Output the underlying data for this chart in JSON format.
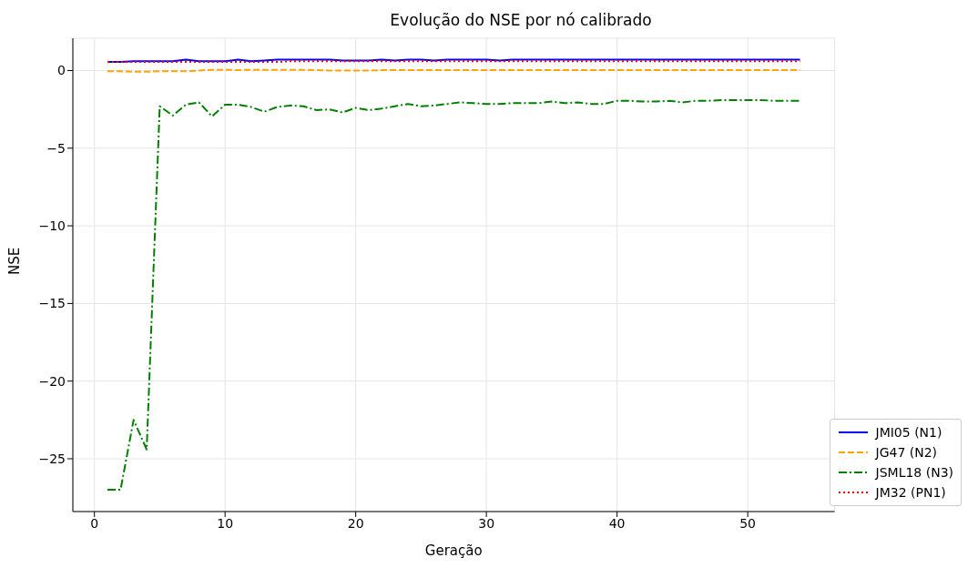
{
  "chart_data": {
    "type": "line",
    "title": "Evolução do NSE por nó calibrado",
    "xlabel": "Geração",
    "ylabel": "NSE",
    "x": [
      1,
      2,
      3,
      4,
      5,
      6,
      7,
      8,
      9,
      10,
      11,
      12,
      13,
      14,
      15,
      16,
      17,
      18,
      19,
      20,
      21,
      22,
      23,
      24,
      25,
      26,
      27,
      28,
      29,
      30,
      31,
      32,
      33,
      34,
      35,
      36,
      37,
      38,
      39,
      40,
      41,
      42,
      43,
      44,
      45,
      46,
      47,
      48,
      49,
      50,
      51,
      52,
      53,
      54
    ],
    "series": [
      {
        "name": "JMI05 (N1)",
        "color": "#0000ff",
        "line_style": "solid",
        "values": [
          0.55,
          0.55,
          0.6,
          0.6,
          0.6,
          0.6,
          0.7,
          0.6,
          0.6,
          0.6,
          0.7,
          0.6,
          0.65,
          0.7,
          0.7,
          0.7,
          0.7,
          0.7,
          0.65,
          0.65,
          0.65,
          0.7,
          0.65,
          0.7,
          0.7,
          0.65,
          0.7,
          0.7,
          0.7,
          0.7,
          0.65,
          0.7,
          0.7,
          0.7,
          0.7,
          0.7,
          0.7,
          0.7,
          0.7,
          0.7,
          0.7,
          0.7,
          0.7,
          0.7,
          0.7,
          0.7,
          0.7,
          0.7,
          0.7,
          0.7,
          0.7,
          0.7,
          0.7,
          0.7
        ]
      },
      {
        "name": "JG47 (N2)",
        "color": "#ffa500",
        "line_style": "dashed",
        "values": [
          -0.05,
          -0.05,
          -0.08,
          -0.08,
          -0.05,
          -0.05,
          -0.05,
          0.0,
          0.05,
          0.05,
          0.03,
          0.05,
          0.05,
          0.05,
          0.05,
          0.05,
          0.03,
          0.0,
          0.0,
          0.0,
          0.0,
          0.03,
          0.03,
          0.03,
          0.03,
          0.03,
          0.03,
          0.03,
          0.03,
          0.03,
          0.03,
          0.03,
          0.03,
          0.03,
          0.03,
          0.03,
          0.03,
          0.03,
          0.03,
          0.03,
          0.03,
          0.03,
          0.03,
          0.03,
          0.03,
          0.03,
          0.03,
          0.03,
          0.03,
          0.03,
          0.03,
          0.03,
          0.03,
          0.03
        ]
      },
      {
        "name": "JSML18 (N3)",
        "color": "#008000",
        "line_style": "dashdot",
        "values": [
          -27,
          -27,
          -22.5,
          -24.4,
          -2.3,
          -2.9,
          -2.2,
          -2.05,
          -2.95,
          -2.2,
          -2.2,
          -2.35,
          -2.65,
          -2.35,
          -2.25,
          -2.3,
          -2.55,
          -2.5,
          -2.7,
          -2.4,
          -2.55,
          -2.45,
          -2.3,
          -2.15,
          -2.3,
          -2.25,
          -2.15,
          -2.05,
          -2.1,
          -2.15,
          -2.15,
          -2.1,
          -2.1,
          -2.1,
          -2.0,
          -2.1,
          -2.05,
          -2.15,
          -2.15,
          -1.95,
          -1.95,
          -2.0,
          -2.0,
          -1.95,
          -2.05,
          -1.95,
          -1.95,
          -1.9,
          -1.9,
          -1.9,
          -1.9,
          -1.95,
          -1.95,
          -1.95
        ]
      },
      {
        "name": "JM32 (PN1)",
        "color": "#ff0000",
        "line_style": "dotted",
        "values": [
          0.55,
          0.55,
          0.55,
          0.55,
          0.55,
          0.55,
          0.55,
          0.55,
          0.55,
          0.55,
          0.55,
          0.55,
          0.55,
          0.55,
          0.6,
          0.6,
          0.6,
          0.6,
          0.6,
          0.6,
          0.6,
          0.6,
          0.6,
          0.6,
          0.6,
          0.6,
          0.6,
          0.6,
          0.6,
          0.6,
          0.6,
          0.6,
          0.6,
          0.6,
          0.6,
          0.6,
          0.6,
          0.6,
          0.6,
          0.6,
          0.6,
          0.6,
          0.6,
          0.6,
          0.6,
          0.6,
          0.6,
          0.6,
          0.6,
          0.6,
          0.6,
          0.6,
          0.6,
          0.6
        ]
      }
    ],
    "xlim": [
      -1.65,
      56.65
    ],
    "xticks": [
      0,
      10,
      20,
      30,
      40,
      50
    ],
    "ylim": [
      -28.4,
      2.08
    ],
    "yticks": [
      -25,
      -20,
      -15,
      -10,
      -5,
      0
    ],
    "grid": true,
    "legend": "bottom right",
    "marker": "none"
  }
}
